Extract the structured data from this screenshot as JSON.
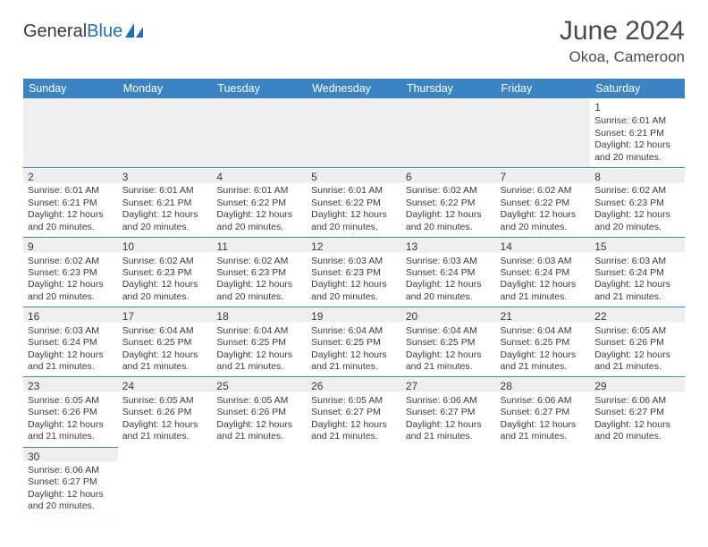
{
  "logo": {
    "text_a": "General",
    "text_b": "Blue",
    "icon_color": "#1f6fb2"
  },
  "title": "June 2024",
  "location": "Okoa, Cameroon",
  "colors": {
    "header_bg": "#3b84c4",
    "header_text": "#ffffff",
    "border": "#3b84c4",
    "text": "#3a3a3a",
    "gray_bg": "#eeeeee"
  },
  "day_headers": [
    "Sunday",
    "Monday",
    "Tuesday",
    "Wednesday",
    "Thursday",
    "Friday",
    "Saturday"
  ],
  "weeks": [
    [
      {},
      {},
      {},
      {},
      {},
      {},
      {
        "n": "1",
        "sr": "Sunrise: 6:01 AM",
        "ss": "Sunset: 6:21 PM",
        "dl1": "Daylight: 12 hours",
        "dl2": "and 20 minutes."
      }
    ],
    [
      {
        "n": "2",
        "sr": "Sunrise: 6:01 AM",
        "ss": "Sunset: 6:21 PM",
        "dl1": "Daylight: 12 hours",
        "dl2": "and 20 minutes."
      },
      {
        "n": "3",
        "sr": "Sunrise: 6:01 AM",
        "ss": "Sunset: 6:21 PM",
        "dl1": "Daylight: 12 hours",
        "dl2": "and 20 minutes."
      },
      {
        "n": "4",
        "sr": "Sunrise: 6:01 AM",
        "ss": "Sunset: 6:22 PM",
        "dl1": "Daylight: 12 hours",
        "dl2": "and 20 minutes."
      },
      {
        "n": "5",
        "sr": "Sunrise: 6:01 AM",
        "ss": "Sunset: 6:22 PM",
        "dl1": "Daylight: 12 hours",
        "dl2": "and 20 minutes."
      },
      {
        "n": "6",
        "sr": "Sunrise: 6:02 AM",
        "ss": "Sunset: 6:22 PM",
        "dl1": "Daylight: 12 hours",
        "dl2": "and 20 minutes."
      },
      {
        "n": "7",
        "sr": "Sunrise: 6:02 AM",
        "ss": "Sunset: 6:22 PM",
        "dl1": "Daylight: 12 hours",
        "dl2": "and 20 minutes."
      },
      {
        "n": "8",
        "sr": "Sunrise: 6:02 AM",
        "ss": "Sunset: 6:23 PM",
        "dl1": "Daylight: 12 hours",
        "dl2": "and 20 minutes."
      }
    ],
    [
      {
        "n": "9",
        "sr": "Sunrise: 6:02 AM",
        "ss": "Sunset: 6:23 PM",
        "dl1": "Daylight: 12 hours",
        "dl2": "and 20 minutes."
      },
      {
        "n": "10",
        "sr": "Sunrise: 6:02 AM",
        "ss": "Sunset: 6:23 PM",
        "dl1": "Daylight: 12 hours",
        "dl2": "and 20 minutes."
      },
      {
        "n": "11",
        "sr": "Sunrise: 6:02 AM",
        "ss": "Sunset: 6:23 PM",
        "dl1": "Daylight: 12 hours",
        "dl2": "and 20 minutes."
      },
      {
        "n": "12",
        "sr": "Sunrise: 6:03 AM",
        "ss": "Sunset: 6:23 PM",
        "dl1": "Daylight: 12 hours",
        "dl2": "and 20 minutes."
      },
      {
        "n": "13",
        "sr": "Sunrise: 6:03 AM",
        "ss": "Sunset: 6:24 PM",
        "dl1": "Daylight: 12 hours",
        "dl2": "and 20 minutes."
      },
      {
        "n": "14",
        "sr": "Sunrise: 6:03 AM",
        "ss": "Sunset: 6:24 PM",
        "dl1": "Daylight: 12 hours",
        "dl2": "and 21 minutes."
      },
      {
        "n": "15",
        "sr": "Sunrise: 6:03 AM",
        "ss": "Sunset: 6:24 PM",
        "dl1": "Daylight: 12 hours",
        "dl2": "and 21 minutes."
      }
    ],
    [
      {
        "n": "16",
        "sr": "Sunrise: 6:03 AM",
        "ss": "Sunset: 6:24 PM",
        "dl1": "Daylight: 12 hours",
        "dl2": "and 21 minutes."
      },
      {
        "n": "17",
        "sr": "Sunrise: 6:04 AM",
        "ss": "Sunset: 6:25 PM",
        "dl1": "Daylight: 12 hours",
        "dl2": "and 21 minutes."
      },
      {
        "n": "18",
        "sr": "Sunrise: 6:04 AM",
        "ss": "Sunset: 6:25 PM",
        "dl1": "Daylight: 12 hours",
        "dl2": "and 21 minutes."
      },
      {
        "n": "19",
        "sr": "Sunrise: 6:04 AM",
        "ss": "Sunset: 6:25 PM",
        "dl1": "Daylight: 12 hours",
        "dl2": "and 21 minutes."
      },
      {
        "n": "20",
        "sr": "Sunrise: 6:04 AM",
        "ss": "Sunset: 6:25 PM",
        "dl1": "Daylight: 12 hours",
        "dl2": "and 21 minutes."
      },
      {
        "n": "21",
        "sr": "Sunrise: 6:04 AM",
        "ss": "Sunset: 6:25 PM",
        "dl1": "Daylight: 12 hours",
        "dl2": "and 21 minutes."
      },
      {
        "n": "22",
        "sr": "Sunrise: 6:05 AM",
        "ss": "Sunset: 6:26 PM",
        "dl1": "Daylight: 12 hours",
        "dl2": "and 21 minutes."
      }
    ],
    [
      {
        "n": "23",
        "sr": "Sunrise: 6:05 AM",
        "ss": "Sunset: 6:26 PM",
        "dl1": "Daylight: 12 hours",
        "dl2": "and 21 minutes."
      },
      {
        "n": "24",
        "sr": "Sunrise: 6:05 AM",
        "ss": "Sunset: 6:26 PM",
        "dl1": "Daylight: 12 hours",
        "dl2": "and 21 minutes."
      },
      {
        "n": "25",
        "sr": "Sunrise: 6:05 AM",
        "ss": "Sunset: 6:26 PM",
        "dl1": "Daylight: 12 hours",
        "dl2": "and 21 minutes."
      },
      {
        "n": "26",
        "sr": "Sunrise: 6:05 AM",
        "ss": "Sunset: 6:27 PM",
        "dl1": "Daylight: 12 hours",
        "dl2": "and 21 minutes."
      },
      {
        "n": "27",
        "sr": "Sunrise: 6:06 AM",
        "ss": "Sunset: 6:27 PM",
        "dl1": "Daylight: 12 hours",
        "dl2": "and 21 minutes."
      },
      {
        "n": "28",
        "sr": "Sunrise: 6:06 AM",
        "ss": "Sunset: 6:27 PM",
        "dl1": "Daylight: 12 hours",
        "dl2": "and 21 minutes."
      },
      {
        "n": "29",
        "sr": "Sunrise: 6:06 AM",
        "ss": "Sunset: 6:27 PM",
        "dl1": "Daylight: 12 hours",
        "dl2": "and 20 minutes."
      }
    ],
    [
      {
        "n": "30",
        "sr": "Sunrise: 6:06 AM",
        "ss": "Sunset: 6:27 PM",
        "dl1": "Daylight: 12 hours",
        "dl2": "and 20 minutes."
      },
      {},
      {},
      {},
      {},
      {},
      {}
    ]
  ]
}
